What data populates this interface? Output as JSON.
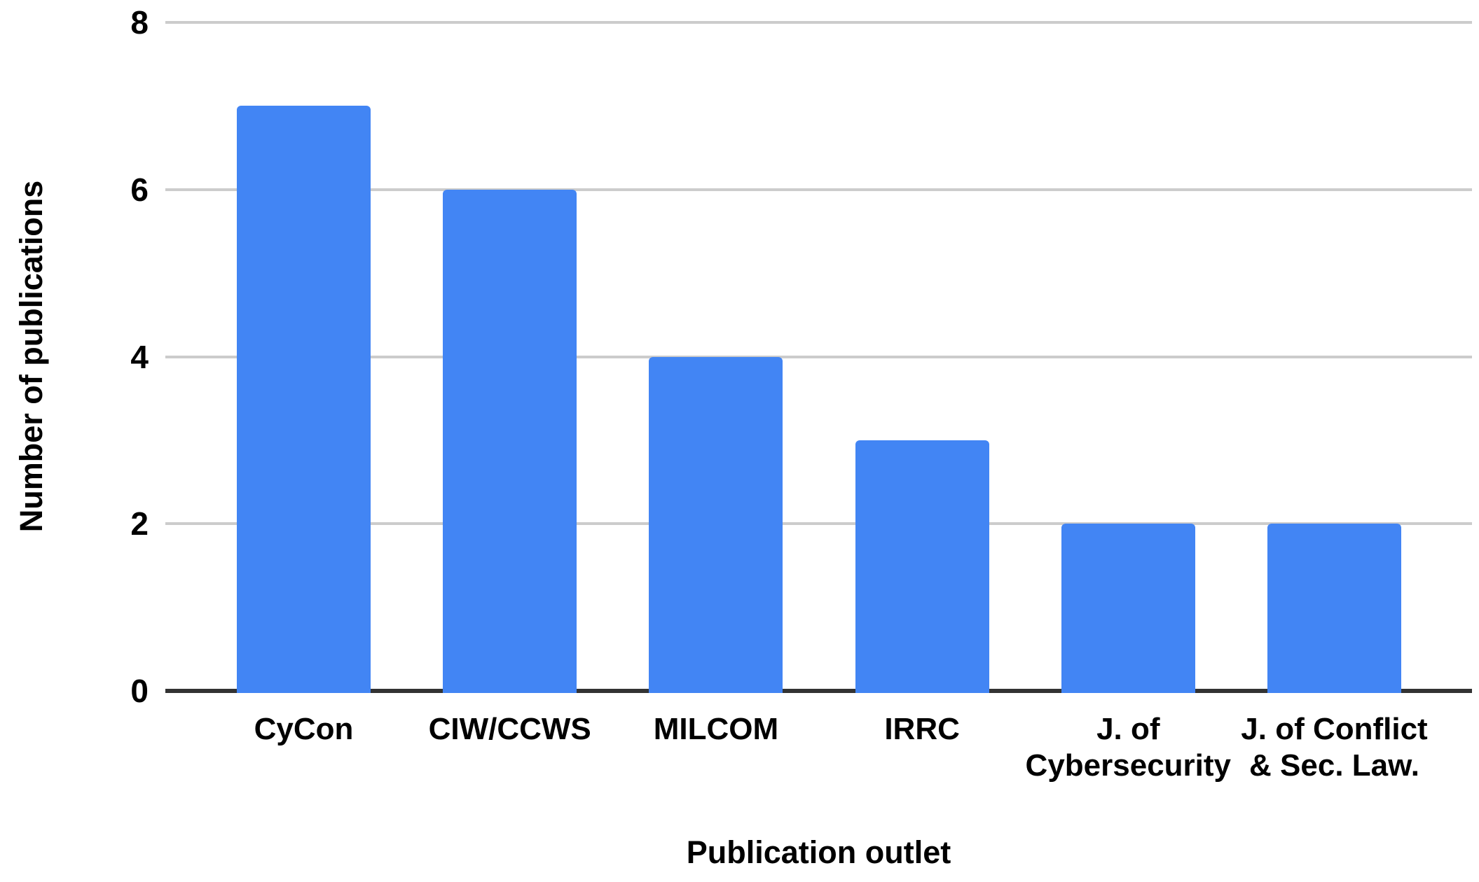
{
  "chart_data": {
    "type": "bar",
    "title": "",
    "categories": [
      "CyCon",
      "CIW/CCWS",
      "MILCOM",
      "IRRC",
      "J. of\nCybersecurity",
      "J. of Conflict\n& Sec. Law."
    ],
    "values": [
      7,
      6,
      4,
      3,
      2,
      2
    ],
    "xlabel": "Publication outlet",
    "ylabel": "Number of publications",
    "ylim": [
      0,
      8
    ],
    "yticks": [
      0,
      2,
      4,
      6,
      8
    ],
    "grid": true,
    "legend": false,
    "colors": {
      "bar": "#4285F4",
      "gridline": "#CCCCCC",
      "axis_line": "#333333",
      "text": "#000000",
      "background": "#FFFFFF"
    }
  }
}
